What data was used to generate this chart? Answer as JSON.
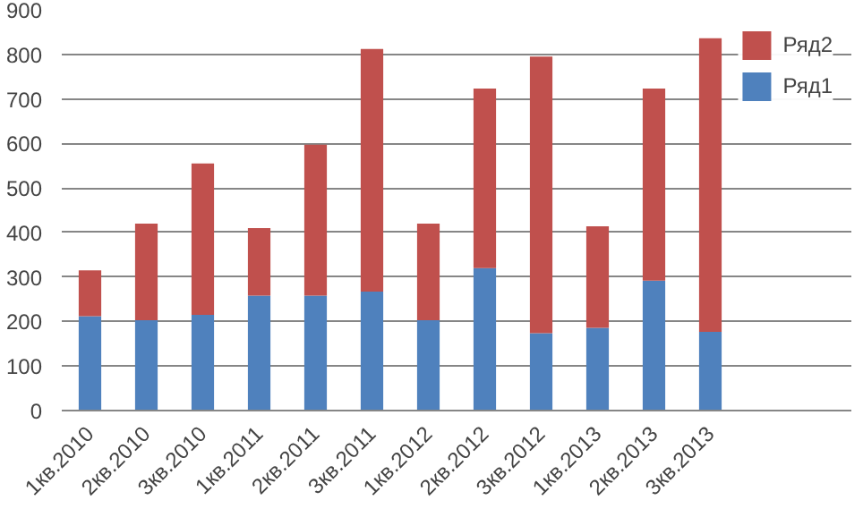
{
  "chart_data": {
    "type": "bar",
    "stacked": true,
    "categories": [
      "1кв.2010",
      "2кв.2010",
      "3кв.2010",
      "1кв.2011",
      "2кв.2011",
      "3кв.2011",
      "1кв.2012",
      "2кв.2012",
      "3кв.2012",
      "1кв.2013",
      "2кв.2013",
      "3кв.2013"
    ],
    "series": [
      {
        "name": "Ряд1",
        "color": "#4f81bd",
        "values": [
          212,
          203,
          215,
          258,
          258,
          267,
          203,
          320,
          174,
          186,
          292,
          177
        ]
      },
      {
        "name": "Ряд2",
        "color": "#c0504d",
        "values": [
          103,
          217,
          340,
          152,
          339,
          545,
          217,
          403,
          621,
          228,
          431,
          659
        ]
      }
    ],
    "ylim": [
      0,
      900
    ],
    "yticks": [
      0,
      100,
      200,
      300,
      400,
      500,
      600,
      700,
      800,
      900
    ],
    "grid": "y",
    "legend": "right"
  }
}
